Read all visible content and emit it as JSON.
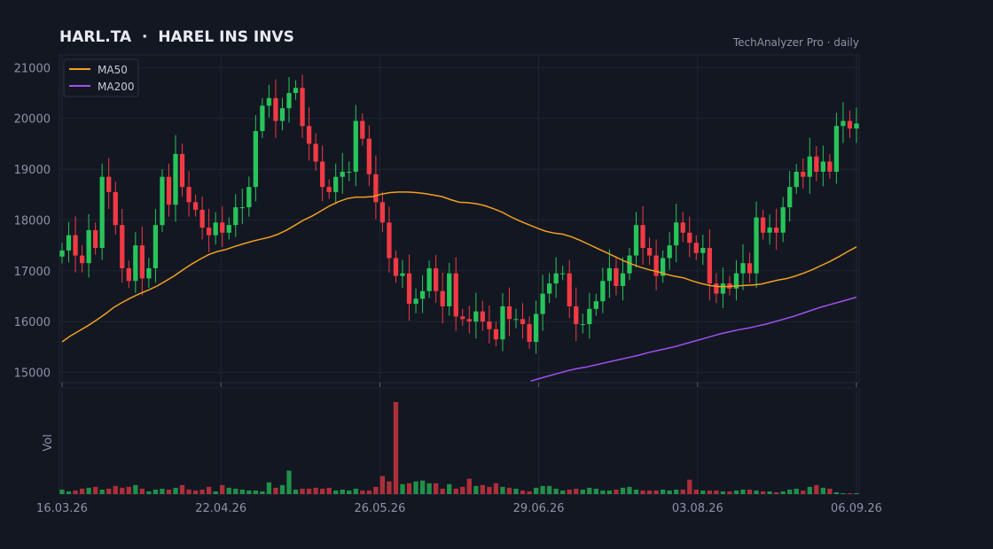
{
  "title": "HARL.TA  ·  HAREL INS INVS",
  "source": "TechAnalyzer Pro · daily",
  "legend": [
    {
      "label": "MA50",
      "color": "#f0a020"
    },
    {
      "label": "MA200",
      "color": "#a050f0"
    }
  ],
  "colors": {
    "up": "#27c45a",
    "down": "#f03a44",
    "bg": "#131722",
    "grid": "#1f2533"
  },
  "chart_data": {
    "type": "candlestick",
    "x_ticks": [
      "16.03.26",
      "22.04.26",
      "26.05.26",
      "29.06.26",
      "03.08.26",
      "06.09.26"
    ],
    "y_ticks": [
      15000,
      16000,
      17000,
      18000,
      19000,
      20000,
      21000
    ],
    "ylim": [
      14800,
      21250
    ],
    "volume_label": "Vol",
    "grid": true,
    "legend_position": "top-left",
    "closes": [
      17400,
      17700,
      17300,
      17150,
      17800,
      17450,
      18850,
      18550,
      17900,
      17050,
      16800,
      17500,
      16850,
      17050,
      17900,
      18850,
      18300,
      19300,
      18650,
      18350,
      18200,
      17850,
      17700,
      17950,
      17750,
      17900,
      18250,
      18250,
      18650,
      19750,
      20250,
      20400,
      19950,
      20200,
      20500,
      20600,
      19850,
      19500,
      19150,
      18650,
      18550,
      18850,
      18950,
      18950,
      19950,
      19600,
      18900,
      18350,
      17950,
      17250,
      16900,
      16950,
      16350,
      16450,
      16600,
      17050,
      16600,
      16300,
      16950,
      16100,
      16050,
      16000,
      16200,
      16000,
      15850,
      15650,
      16300,
      16050,
      16050,
      15950,
      15600,
      16150,
      16550,
      16750,
      16950,
      16950,
      16300,
      15950,
      15950,
      16250,
      16400,
      16800,
      17050,
      16700,
      16950,
      17300,
      17900,
      17450,
      17300,
      16900,
      17250,
      17500,
      17950,
      17750,
      17550,
      17350,
      17450,
      16750,
      16550,
      16750,
      16650,
      16950,
      17150,
      16950,
      18050,
      17750,
      17850,
      17750,
      18250,
      18650,
      18950,
      18850,
      19250,
      18950,
      19150,
      18950,
      19850,
      19950,
      19800,
      19900
    ],
    "ma50": [
      15600,
      15720,
      15820,
      15920,
      16030,
      16150,
      16280,
      16380,
      16470,
      16550,
      16620,
      16700,
      16800,
      16900,
      17020,
      17130,
      17230,
      17320,
      17380,
      17420,
      17480,
      17530,
      17580,
      17620,
      17660,
      17720,
      17800,
      17900,
      18000,
      18080,
      18180,
      18280,
      18360,
      18420,
      18450,
      18450,
      18460,
      18510,
      18540,
      18550,
      18550,
      18540,
      18520,
      18490,
      18460,
      18400,
      18350,
      18340,
      18320,
      18280,
      18220,
      18150,
      18060,
      17980,
      17910,
      17840,
      17780,
      17740,
      17720,
      17670,
      17600,
      17520,
      17440,
      17360,
      17280,
      17200,
      17130,
      17070,
      17020,
      16980,
      16930,
      16890,
      16860,
      16800,
      16750,
      16710,
      16690,
      16690,
      16700,
      16710,
      16720,
      16740,
      16780,
      16820,
      16850,
      16900,
      16960,
      17030,
      17110,
      17190,
      17280,
      17380,
      17470
    ],
    "ma200": [
      14830,
      14880,
      14930,
      14980,
      15030,
      15070,
      15100,
      15140,
      15180,
      15220,
      15260,
      15300,
      15340,
      15390,
      15430,
      15470,
      15510,
      15560,
      15610,
      15660,
      15710,
      15760,
      15800,
      15840,
      15870,
      15910,
      15950,
      16000,
      16050,
      16100,
      16160,
      16220,
      16280,
      16330,
      16380,
      16430,
      16480
    ],
    "volumes": [
      5,
      3,
      4,
      6,
      7,
      8,
      5,
      6,
      9,
      7,
      8,
      10,
      6,
      3,
      5,
      6,
      5,
      7,
      10,
      5,
      4,
      5,
      8,
      3,
      10,
      7,
      6,
      5,
      4,
      4,
      3,
      13,
      7,
      10,
      26,
      5,
      6,
      6,
      7,
      6,
      7,
      4,
      5,
      4,
      6,
      4,
      4,
      8,
      20,
      14,
      102,
      11,
      12,
      14,
      15,
      12,
      12,
      6,
      11,
      6,
      8,
      17,
      9,
      10,
      8,
      12,
      8,
      7,
      6,
      4,
      3,
      7,
      9,
      9,
      6,
      4,
      5,
      6,
      5,
      7,
      6,
      4,
      4,
      5,
      7,
      8,
      5,
      4,
      4,
      4,
      5,
      4,
      5,
      5,
      16,
      5,
      4,
      4,
      4,
      3,
      3,
      4,
      5,
      5,
      4,
      3,
      3,
      2,
      3,
      5,
      6,
      4,
      8,
      10,
      7,
      6,
      2,
      1,
      1,
      1
    ],
    "volume_spikes": [
      {
        "index": 50,
        "value": 102
      }
    ]
  }
}
